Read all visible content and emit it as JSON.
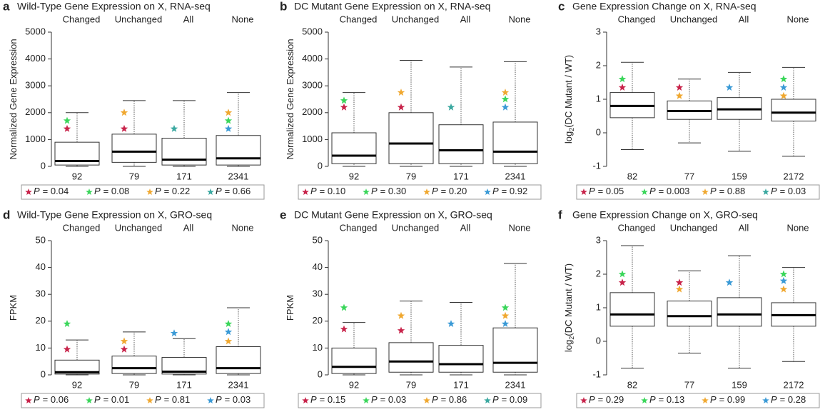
{
  "chart_data": [
    {
      "type": "box",
      "letter": "a",
      "title": "Wild-Type Gene Expression on X, RNA-seq",
      "y_label": [
        "Normalized Gene Expression"
      ],
      "categories": [
        "Changed",
        "Unchanged",
        "All",
        "None"
      ],
      "counts": [
        "92",
        "79",
        "171",
        "2341"
      ],
      "ylim": [
        0,
        5000
      ],
      "yticks": [
        0,
        1000,
        2000,
        3000,
        4000,
        5000
      ],
      "boxes": [
        {
          "low": 0,
          "q1": 50,
          "median": 200,
          "q3": 900,
          "high": 2000,
          "stars": [
            {
              "value": 1700,
              "color": "#3ad65a"
            },
            {
              "value": 1400,
              "color": "#c8234a"
            }
          ]
        },
        {
          "low": 0,
          "q1": 150,
          "median": 550,
          "q3": 1200,
          "high": 2450,
          "stars": [
            {
              "value": 2000,
              "color": "#f0a830"
            },
            {
              "value": 1400,
              "color": "#c8234a"
            }
          ]
        },
        {
          "low": 0,
          "q1": 50,
          "median": 250,
          "q3": 1050,
          "high": 2450,
          "stars": [
            {
              "value": 1400,
              "color": "#3aa8a0"
            }
          ]
        },
        {
          "low": 0,
          "q1": 50,
          "median": 300,
          "q3": 1150,
          "high": 2750,
          "stars": [
            {
              "value": 2000,
              "color": "#f0a830"
            },
            {
              "value": 1700,
              "color": "#3ad65a"
            },
            {
              "value": 1400,
              "color": "#3a9ad6"
            }
          ]
        }
      ],
      "tests": [
        {
          "stat": "P",
          "text": "= 0.04",
          "color": "#c8234a"
        },
        {
          "stat": "P",
          "text": "= 0.08",
          "color": "#3ad65a"
        },
        {
          "stat": "P",
          "text": "= 0.22",
          "color": "#f0a830"
        },
        {
          "stat": "P",
          "text": "= 0.66",
          "color": "#3aa8a0"
        }
      ]
    },
    {
      "type": "box",
      "letter": "b",
      "title": "DC Mutant Gene Expression on X, RNA-seq",
      "y_label": [
        "Normalized Gene Expression"
      ],
      "categories": [
        "Changed",
        "Unchanged",
        "All",
        "None"
      ],
      "counts": [
        "92",
        "79",
        "171",
        "2341"
      ],
      "ylim": [
        0,
        5000
      ],
      "yticks": [
        0,
        1000,
        2000,
        3000,
        4000,
        5000
      ],
      "boxes": [
        {
          "low": 0,
          "q1": 100,
          "median": 400,
          "q3": 1250,
          "high": 2750,
          "stars": [
            {
              "value": 2450,
              "color": "#3ad65a"
            },
            {
              "value": 2200,
              "color": "#c8234a"
            }
          ]
        },
        {
          "low": 0,
          "q1": 100,
          "median": 850,
          "q3": 2000,
          "high": 3950,
          "stars": [
            {
              "value": 2750,
              "color": "#f0a830"
            },
            {
              "value": 2200,
              "color": "#c8234a"
            }
          ]
        },
        {
          "low": 0,
          "q1": 100,
          "median": 600,
          "q3": 1550,
          "high": 3700,
          "stars": [
            {
              "value": 2200,
              "color": "#3aa8a0"
            }
          ]
        },
        {
          "low": 0,
          "q1": 100,
          "median": 550,
          "q3": 1650,
          "high": 3900,
          "stars": [
            {
              "value": 2750,
              "color": "#f0a830"
            },
            {
              "value": 2500,
              "color": "#3ad65a"
            },
            {
              "value": 2200,
              "color": "#3a9ad6"
            }
          ]
        }
      ],
      "tests": [
        {
          "stat": "P",
          "text": "= 0.10",
          "color": "#c8234a"
        },
        {
          "stat": "P",
          "text": "= 0.30",
          "color": "#3ad65a"
        },
        {
          "stat": "P",
          "text": "= 0.20",
          "color": "#f0a830"
        },
        {
          "stat": "P",
          "text": "= 0.92",
          "color": "#3a9ad6"
        }
      ]
    },
    {
      "type": "box",
      "letter": "c",
      "title": "Gene Expression Change on X, RNA-seq",
      "y_label": [
        "log",
        "2",
        "(DC Mutant / WT)"
      ],
      "categories": [
        "Changed",
        "Unchanged",
        "All",
        "None"
      ],
      "counts": [
        "82",
        "77",
        "159",
        "2172"
      ],
      "ylim": [
        -1,
        3
      ],
      "yticks": [
        -1,
        0,
        1,
        2,
        3
      ],
      "boxes": [
        {
          "low": -0.5,
          "q1": 0.45,
          "median": 0.8,
          "q3": 1.2,
          "high": 2.1,
          "stars": [
            {
              "value": 1.6,
              "color": "#3ad65a"
            },
            {
              "value": 1.35,
              "color": "#c8234a"
            }
          ]
        },
        {
          "low": -0.3,
          "q1": 0.4,
          "median": 0.65,
          "q3": 0.95,
          "high": 1.6,
          "stars": [
            {
              "value": 1.35,
              "color": "#c8234a"
            },
            {
              "value": 1.1,
              "color": "#f0a830"
            }
          ]
        },
        {
          "low": -0.55,
          "q1": 0.4,
          "median": 0.7,
          "q3": 1.05,
          "high": 1.8,
          "stars": [
            {
              "value": 1.35,
              "color": "#3a9ad6"
            }
          ]
        },
        {
          "low": -0.7,
          "q1": 0.35,
          "median": 0.6,
          "q3": 1.0,
          "high": 1.95,
          "stars": [
            {
              "value": 1.6,
              "color": "#3ad65a"
            },
            {
              "value": 1.35,
              "color": "#3a9ad6"
            },
            {
              "value": 1.1,
              "color": "#f0a830"
            }
          ]
        }
      ],
      "tests": [
        {
          "stat": "P",
          "text": "= 0.05",
          "color": "#c8234a"
        },
        {
          "stat": "P",
          "text": "= 0.003",
          "color": "#3ad65a"
        },
        {
          "stat": "P",
          "text": "= 0.88",
          "color": "#f0a830"
        },
        {
          "stat": "P",
          "text": "= 0.03",
          "color": "#3aa8a0"
        }
      ]
    },
    {
      "type": "box",
      "letter": "d",
      "title": "Wild-Type Gene Expression on X, GRO-seq",
      "y_label": [
        "FPKM"
      ],
      "categories": [
        "Changed",
        "Unchanged",
        "All",
        "None"
      ],
      "counts": [
        "92",
        "79",
        "171",
        "2341"
      ],
      "ylim": [
        0,
        50
      ],
      "yticks": [
        0,
        10,
        20,
        30,
        40,
        50
      ],
      "boxes": [
        {
          "low": 0,
          "q1": 0.3,
          "median": 1,
          "q3": 5.5,
          "high": 13,
          "stars": [
            {
              "value": 19,
              "color": "#3ad65a"
            },
            {
              "value": 9.5,
              "color": "#c8234a"
            }
          ]
        },
        {
          "low": 0,
          "q1": 0.5,
          "median": 2.5,
          "q3": 7,
          "high": 16,
          "stars": [
            {
              "value": 12.5,
              "color": "#f0a830"
            },
            {
              "value": 9.5,
              "color": "#c8234a"
            }
          ]
        },
        {
          "low": 0,
          "q1": 0.3,
          "median": 1.2,
          "q3": 6.5,
          "high": 13.5,
          "stars": [
            {
              "value": 15.5,
              "color": "#3a9ad6"
            }
          ]
        },
        {
          "low": 0,
          "q1": 0.5,
          "median": 2.5,
          "q3": 10.5,
          "high": 25,
          "stars": [
            {
              "value": 19,
              "color": "#3ad65a"
            },
            {
              "value": 16,
              "color": "#3a9ad6"
            },
            {
              "value": 12.5,
              "color": "#f0a830"
            }
          ]
        }
      ],
      "tests": [
        {
          "stat": "P",
          "text": "= 0.06",
          "color": "#c8234a"
        },
        {
          "stat": "P",
          "text": "= 0.01",
          "color": "#3ad65a"
        },
        {
          "stat": "P",
          "text": "= 0.81",
          "color": "#f0a830"
        },
        {
          "stat": "P",
          "text": "= 0.03",
          "color": "#3a9ad6"
        }
      ]
    },
    {
      "type": "box",
      "letter": "e",
      "title": "DC Mutant Gene Expression on X, GRO-seq",
      "y_label": [
        "FPKM"
      ],
      "categories": [
        "Changed",
        "Unchanged",
        "All",
        "None"
      ],
      "counts": [
        "92",
        "79",
        "171",
        "2341"
      ],
      "ylim": [
        0,
        50
      ],
      "yticks": [
        0,
        10,
        20,
        30,
        40,
        50
      ],
      "boxes": [
        {
          "low": 0,
          "q1": 0.5,
          "median": 3,
          "q3": 10,
          "high": 19.5,
          "stars": [
            {
              "value": 25,
              "color": "#3ad65a"
            },
            {
              "value": 17,
              "color": "#c8234a"
            }
          ]
        },
        {
          "low": 0,
          "q1": 1,
          "median": 5,
          "q3": 12,
          "high": 27.5,
          "stars": [
            {
              "value": 22,
              "color": "#f0a830"
            },
            {
              "value": 16.5,
              "color": "#c8234a"
            }
          ]
        },
        {
          "low": 0,
          "q1": 1,
          "median": 4,
          "q3": 11,
          "high": 27,
          "stars": [
            {
              "value": 19,
              "color": "#3a9ad6"
            }
          ]
        },
        {
          "low": 0,
          "q1": 1,
          "median": 4.5,
          "q3": 17.5,
          "high": 41.5,
          "stars": [
            {
              "value": 25,
              "color": "#3ad65a"
            },
            {
              "value": 22,
              "color": "#f0a830"
            },
            {
              "value": 19,
              "color": "#3a9ad6"
            }
          ]
        }
      ],
      "tests": [
        {
          "stat": "P",
          "text": "= 0.15",
          "color": "#c8234a"
        },
        {
          "stat": "P",
          "text": "= 0.03",
          "color": "#3ad65a"
        },
        {
          "stat": "P",
          "text": "= 0.86",
          "color": "#f0a830"
        },
        {
          "stat": "P",
          "text": "= 0.09",
          "color": "#3aa8a0"
        }
      ]
    },
    {
      "type": "box",
      "letter": "f",
      "title": "Gene Expression Change on X, GRO-seq",
      "y_label": [
        "log",
        "2",
        "(DC Mutant / WT)"
      ],
      "categories": [
        "Changed",
        "Unchanged",
        "All",
        "None"
      ],
      "counts": [
        "82",
        "77",
        "159",
        "2172"
      ],
      "ylim": [
        -1,
        3
      ],
      "yticks": [
        -1,
        0,
        1,
        2,
        3
      ],
      "boxes": [
        {
          "low": -0.8,
          "q1": 0.45,
          "median": 0.8,
          "q3": 1.45,
          "high": 2.85,
          "stars": [
            {
              "value": 2.0,
              "color": "#3ad65a"
            },
            {
              "value": 1.75,
              "color": "#c8234a"
            }
          ]
        },
        {
          "low": -0.35,
          "q1": 0.45,
          "median": 0.75,
          "q3": 1.2,
          "high": 2.1,
          "stars": [
            {
              "value": 1.75,
              "color": "#c8234a"
            },
            {
              "value": 1.55,
              "color": "#f0a830"
            }
          ]
        },
        {
          "low": -0.8,
          "q1": 0.45,
          "median": 0.8,
          "q3": 1.3,
          "high": 2.55,
          "stars": [
            {
              "value": 1.75,
              "color": "#3a9ad6"
            }
          ]
        },
        {
          "low": -0.6,
          "q1": 0.45,
          "median": 0.78,
          "q3": 1.15,
          "high": 2.2,
          "stars": [
            {
              "value": 2.0,
              "color": "#3ad65a"
            },
            {
              "value": 1.8,
              "color": "#3a9ad6"
            },
            {
              "value": 1.55,
              "color": "#f0a830"
            }
          ]
        }
      ],
      "tests": [
        {
          "stat": "P",
          "text": "= 0.29",
          "color": "#c8234a"
        },
        {
          "stat": "P",
          "text": "= 0.13",
          "color": "#3ad65a"
        },
        {
          "stat": "P",
          "text": "= 0.99",
          "color": "#f0a830"
        },
        {
          "stat": "P",
          "text": "= 0.28",
          "color": "#3a9ad6"
        }
      ]
    }
  ]
}
